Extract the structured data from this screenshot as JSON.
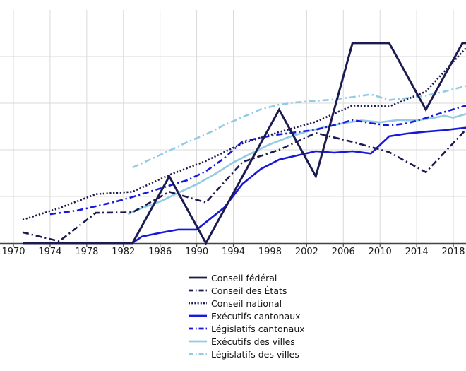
{
  "chart_data": {
    "type": "line",
    "title": "",
    "xlabel": "",
    "ylabel": "",
    "unit": "percent",
    "x_axis": {
      "tick_labels": [
        "1970",
        "1974",
        "1978",
        "1982",
        "1986",
        "1990",
        "1994",
        "1998",
        "2002",
        "2006",
        "2010",
        "2014",
        "2018"
      ],
      "tick_years": [
        1970,
        1974,
        1978,
        1982,
        1986,
        1990,
        1994,
        1998,
        2002,
        2006,
        2010,
        2014,
        2018
      ],
      "visible_range": [
        1968.5,
        2019.6
      ]
    },
    "y_axis": {
      "range": [
        0,
        50
      ],
      "gridline_step": 10,
      "labels_visible": false,
      "grid": true
    },
    "legend_position": "bottom-center",
    "series": [
      {
        "name": "Conseil fédéral",
        "color": "#1b1b4f",
        "style": "solid",
        "width": 3,
        "points": [
          [
            1971,
            0
          ],
          [
            1983,
            0
          ],
          [
            1987,
            14.3
          ],
          [
            1991,
            0
          ],
          [
            1995,
            14.3
          ],
          [
            1999,
            28.6
          ],
          [
            2003,
            14.3
          ],
          [
            2007,
            42.9
          ],
          [
            2011,
            42.9
          ],
          [
            2015,
            28.6
          ],
          [
            2019,
            42.9
          ],
          [
            2019.6,
            42.9
          ]
        ]
      },
      {
        "name": "Conseil des États",
        "color": "#1b1b4f",
        "style": "dashdot",
        "width": 2.6,
        "points": [
          [
            1971,
            2.3
          ],
          [
            1975,
            0.4
          ],
          [
            1979,
            6.5
          ],
          [
            1983,
            6.6
          ],
          [
            1987,
            11
          ],
          [
            1991,
            8.7
          ],
          [
            1995,
            17.4
          ],
          [
            1999,
            20
          ],
          [
            2003,
            23.6
          ],
          [
            2007,
            21.7
          ],
          [
            2011,
            19.5
          ],
          [
            2015,
            15.2
          ],
          [
            2019.6,
            24.8
          ]
        ]
      },
      {
        "name": "Conseil national",
        "color": "#1b1b4f",
        "style": "dotted",
        "width": 2.6,
        "points": [
          [
            1971,
            5
          ],
          [
            1975,
            7.5
          ],
          [
            1979,
            10.5
          ],
          [
            1983,
            11
          ],
          [
            1987,
            14.6
          ],
          [
            1991,
            17.6
          ],
          [
            1995,
            21.4
          ],
          [
            1999,
            23.8
          ],
          [
            2003,
            26
          ],
          [
            2007,
            29.5
          ],
          [
            2011,
            29.3
          ],
          [
            2015,
            32.5
          ],
          [
            2019.6,
            42.3
          ]
        ]
      },
      {
        "name": "Exécutifs cantonaux",
        "color": "#1717dd",
        "style": "solid",
        "width": 2.6,
        "points": [
          [
            1983,
            0
          ],
          [
            1984,
            1.4
          ],
          [
            1986,
            2.2
          ],
          [
            1988,
            2.9
          ],
          [
            1990,
            2.9
          ],
          [
            1993,
            7.6
          ],
          [
            1995,
            12.7
          ],
          [
            1997,
            15.9
          ],
          [
            1999,
            17.9
          ],
          [
            2001,
            18.8
          ],
          [
            2003,
            19.7
          ],
          [
            2005,
            19.4
          ],
          [
            2007,
            19.7
          ],
          [
            2009,
            19.2
          ],
          [
            2011,
            22.9
          ],
          [
            2013,
            23.5
          ],
          [
            2015,
            23.9
          ],
          [
            2017,
            24.2
          ],
          [
            2019.6,
            24.8
          ]
        ]
      },
      {
        "name": "Législatifs cantonaux",
        "color": "#1717dd",
        "style": "dashdot",
        "width": 2.6,
        "points": [
          [
            1974,
            6.2
          ],
          [
            1977,
            7
          ],
          [
            1979,
            7.9
          ],
          [
            1981,
            8.8
          ],
          [
            1983,
            9.9
          ],
          [
            1985,
            11.1
          ],
          [
            1987,
            12.3
          ],
          [
            1989,
            13.5
          ],
          [
            1991,
            15.4
          ],
          [
            1993,
            18.2
          ],
          [
            1995,
            21.8
          ],
          [
            1997,
            22.6
          ],
          [
            1999,
            23.3
          ],
          [
            2001,
            23.8
          ],
          [
            2003,
            24.3
          ],
          [
            2005,
            25.3
          ],
          [
            2007,
            26.4
          ],
          [
            2009,
            25.7
          ],
          [
            2011,
            25.2
          ],
          [
            2013,
            25.7
          ],
          [
            2015,
            26.8
          ],
          [
            2017,
            28.1
          ],
          [
            2019.6,
            29.6
          ]
        ]
      },
      {
        "name": "Exécutifs des villes",
        "color": "#92cbe6",
        "style": "solid",
        "width": 2.6,
        "points": [
          [
            1982.5,
            6.2
          ],
          [
            1984,
            7.5
          ],
          [
            1986,
            8.9
          ],
          [
            1988,
            10.8
          ],
          [
            1990,
            12.6
          ],
          [
            1992,
            14.8
          ],
          [
            1994,
            17.3
          ],
          [
            1996,
            19.3
          ],
          [
            1998,
            21.2
          ],
          [
            2000,
            22.7
          ],
          [
            2002,
            23.9
          ],
          [
            2004,
            24.9
          ],
          [
            2006,
            25.7
          ],
          [
            2008,
            26.3
          ],
          [
            2010,
            25.9
          ],
          [
            2012,
            26.4
          ],
          [
            2014,
            26.3
          ],
          [
            2016,
            26.9
          ],
          [
            2017,
            27.3
          ],
          [
            2018,
            26.9
          ],
          [
            2019.6,
            27.8
          ]
        ]
      },
      {
        "name": "Législatifs des villes",
        "color": "#92cbe6",
        "style": "dashdot",
        "width": 2.6,
        "points": [
          [
            1983,
            16.2
          ],
          [
            1985,
            18
          ],
          [
            1987,
            19.8
          ],
          [
            1989,
            21.7
          ],
          [
            1991,
            23.3
          ],
          [
            1993,
            25.3
          ],
          [
            1995,
            27
          ],
          [
            1997,
            28.7
          ],
          [
            1999,
            29.7
          ],
          [
            2001,
            30.2
          ],
          [
            2003,
            30.5
          ],
          [
            2005,
            30.8
          ],
          [
            2007,
            31.3
          ],
          [
            2009,
            31.9
          ],
          [
            2011,
            30.7
          ],
          [
            2013,
            31.1
          ],
          [
            2015,
            31.6
          ],
          [
            2017,
            32.5
          ],
          [
            2019.6,
            33.8
          ]
        ]
      }
    ]
  },
  "colors": {
    "background": "#ffffff",
    "gridline": "#d9d9d9",
    "axis": "#444444",
    "tick_label": "#1a1a1a",
    "legend_text": "#111111"
  }
}
